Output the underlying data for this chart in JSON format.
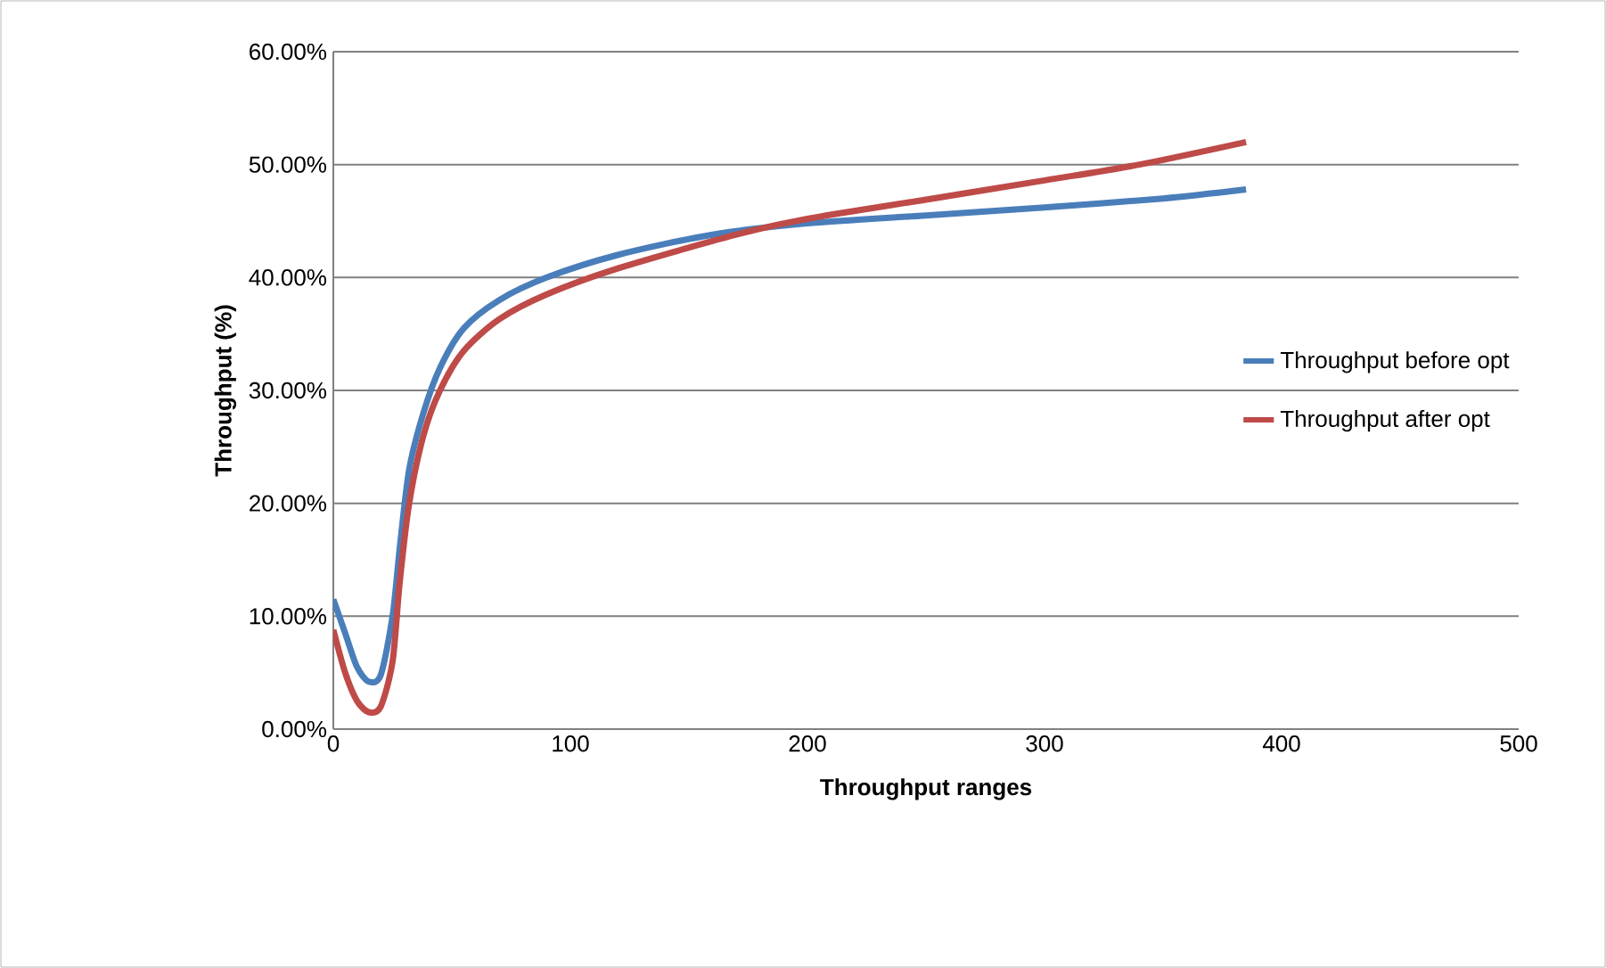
{
  "chart_data": {
    "type": "line",
    "xlabel": "Throughput ranges",
    "ylabel": "Throughput (%)",
    "xlim": [
      0,
      500
    ],
    "xticks": [
      0,
      100,
      200,
      300,
      400,
      500
    ],
    "ylim": [
      0,
      60
    ],
    "yticks": [
      {
        "value": 0,
        "label": "0.00%"
      },
      {
        "value": 10,
        "label": "10.00%"
      },
      {
        "value": 20,
        "label": "20.00%"
      },
      {
        "value": 30,
        "label": "30.00%"
      },
      {
        "value": 40,
        "label": "40.00%"
      },
      {
        "value": 50,
        "label": "50.00%"
      },
      {
        "value": 60,
        "label": "60.00%"
      }
    ],
    "grid": "y",
    "legend": "right",
    "marker": "none",
    "line_style": "solid",
    "series": [
      {
        "name": "Throughput before opt",
        "color": "#4a7ebb",
        "x": [
          0,
          5,
          10,
          15,
          20,
          25,
          28,
          32,
          38,
          45,
          55,
          70,
          90,
          120,
          160,
          200,
          250,
          300,
          350,
          385
        ],
        "values": [
          11.5,
          8.5,
          5.5,
          4.2,
          4.8,
          10,
          16,
          23,
          28,
          32,
          35.5,
          38,
          40,
          42,
          43.8,
          44.8,
          45.5,
          46.2,
          47,
          47.8
        ]
      },
      {
        "name": "Throughput after opt",
        "color": "#be4b48",
        "x": [
          0,
          5,
          10,
          15,
          20,
          25,
          28,
          32,
          38,
          45,
          55,
          70,
          90,
          120,
          170,
          200,
          250,
          300,
          340,
          385
        ],
        "values": [
          8.8,
          5,
          2.5,
          1.5,
          2,
          6,
          13,
          20,
          26,
          30,
          33.5,
          36.3,
          38.5,
          40.8,
          43.8,
          45.2,
          46.9,
          48.6,
          50,
          52
        ]
      }
    ]
  }
}
